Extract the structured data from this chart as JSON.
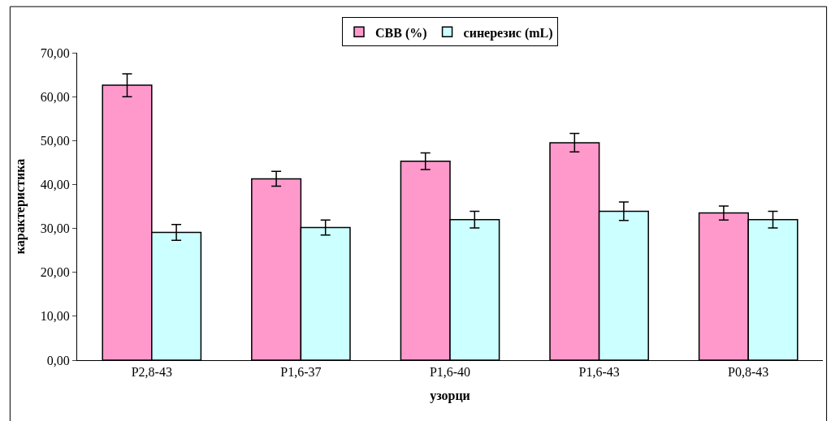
{
  "chart_data": {
    "type": "bar",
    "xlabel": "узорци",
    "ylabel": "карактеристика",
    "categories": [
      "P2,8-43",
      "P1,6-37",
      "P1,6-40",
      "P1,6-43",
      "P0,8-43"
    ],
    "series": [
      {
        "name": "CBB (%)",
        "color": "#ff99cc",
        "values": [
          62.6,
          41.3,
          45.3,
          49.5,
          33.5
        ],
        "errors": [
          2.6,
          1.7,
          1.9,
          2.1,
          1.6
        ]
      },
      {
        "name": "синерезис (mL)",
        "color": "#ccffff",
        "values": [
          29.1,
          30.2,
          32.0,
          33.9,
          32.0
        ],
        "errors": [
          1.8,
          1.7,
          1.9,
          2.1,
          1.9
        ]
      }
    ],
    "ylim": [
      0,
      70
    ],
    "yticks": [
      {
        "value": 0,
        "label": "0,00"
      },
      {
        "value": 10,
        "label": "10,00"
      },
      {
        "value": 20,
        "label": "20,00"
      },
      {
        "value": 30,
        "label": "30,00"
      },
      {
        "value": 40,
        "label": "40,00"
      },
      {
        "value": 50,
        "label": "50,00"
      },
      {
        "value": 60,
        "label": "60,00"
      },
      {
        "value": 70,
        "label": "70,00"
      }
    ],
    "grid": false,
    "legend": "top"
  }
}
